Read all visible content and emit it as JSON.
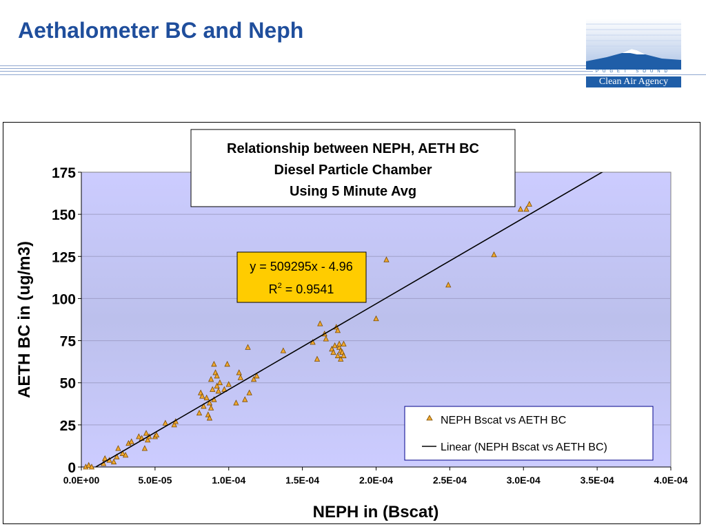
{
  "slide": {
    "title": "Aethalometer BC and Neph"
  },
  "logo": {
    "icon": "mountain-logo-icon",
    "top_text": "PUGET SOUND",
    "name": "Clean Air Agency",
    "colors": {
      "blue": "#1f5ea8",
      "sky": "#aec4e6"
    }
  },
  "chart_data": {
    "type": "scatter",
    "title": [
      "Relationship between NEPH, AETH BC",
      "Diesel Particle Chamber",
      "Using 5 Minute Avg"
    ],
    "xlabel": "NEPH in (Bscat)",
    "ylabel": "AETH BC in (ug/m3)",
    "xlim": [
      0,
      0.0004
    ],
    "ylim": [
      0,
      175
    ],
    "xticks": [
      "0.0E+00",
      "5.0E-05",
      "1.0E-04",
      "1.5E-04",
      "2.0E-04",
      "2.5E-04",
      "3.0E-04",
      "3.5E-04",
      "4.0E-04"
    ],
    "yticks": [
      "0",
      "25",
      "50",
      "75",
      "100",
      "125",
      "150",
      "175"
    ],
    "grid": "horizontal",
    "legend_position": "bottom-right",
    "colors": {
      "plot_area_top": "#ccccff",
      "plot_area_bottom": "#bcc0ec",
      "marker_fill": "#f0a830",
      "marker_edge": "#7a4b00",
      "line": "#000000",
      "equation_box": "#ffcc00"
    },
    "trendline": {
      "slope": 509295,
      "intercept": -4.96
    },
    "annotation": {
      "equation": "y = 509295x - 4.96",
      "r2_prefix": "R",
      "r2_exp": "2",
      "r2_value": " = 0.9541"
    },
    "series": [
      {
        "name": "NEPH Bscat vs AETH BC",
        "marker": "triangle",
        "points": [
          [
            3e-06,
            0
          ],
          [
            5e-06,
            1
          ],
          [
            7e-06,
            0
          ],
          [
            1.5e-05,
            2
          ],
          [
            1.6e-05,
            5
          ],
          [
            1.9e-05,
            4
          ],
          [
            2.2e-05,
            3
          ],
          [
            2.4e-05,
            6
          ],
          [
            2.5e-05,
            11
          ],
          [
            2.8e-05,
            8
          ],
          [
            3e-05,
            7
          ],
          [
            3.2e-05,
            14
          ],
          [
            3.4e-05,
            15
          ],
          [
            3.9e-05,
            18
          ],
          [
            4.1e-05,
            17
          ],
          [
            4.3e-05,
            11
          ],
          [
            4.4e-05,
            20
          ],
          [
            4.5e-05,
            16
          ],
          [
            4.6e-05,
            18
          ],
          [
            5e-05,
            18
          ],
          [
            5.1e-05,
            19
          ],
          [
            5.7e-05,
            26
          ],
          [
            6.3e-05,
            25
          ],
          [
            6.4e-05,
            27
          ],
          [
            8e-05,
            32
          ],
          [
            8.1e-05,
            44
          ],
          [
            8.2e-05,
            42
          ],
          [
            8.3e-05,
            36
          ],
          [
            8.5e-05,
            41
          ],
          [
            8.6e-05,
            31
          ],
          [
            8.7e-05,
            38
          ],
          [
            8.7e-05,
            29
          ],
          [
            8.8e-05,
            35
          ],
          [
            8.8e-05,
            52
          ],
          [
            8.9e-05,
            46
          ],
          [
            9e-05,
            61
          ],
          [
            9e-05,
            40
          ],
          [
            9.1e-05,
            56
          ],
          [
            9.2e-05,
            54
          ],
          [
            9.2e-05,
            48
          ],
          [
            9.3e-05,
            45
          ],
          [
            9.4e-05,
            50
          ],
          [
            9.7e-05,
            46
          ],
          [
            9.9e-05,
            61
          ],
          [
            0.0001,
            49
          ],
          [
            0.000105,
            38
          ],
          [
            0.000107,
            56
          ],
          [
            0.000108,
            53
          ],
          [
            0.000111,
            40
          ],
          [
            0.000113,
            71
          ],
          [
            0.000114,
            44
          ],
          [
            0.000117,
            52
          ],
          [
            0.000119,
            54
          ],
          [
            0.000137,
            69
          ],
          [
            0.000157,
            74
          ],
          [
            0.00016,
            64
          ],
          [
            0.000162,
            85
          ],
          [
            0.000165,
            79
          ],
          [
            0.000166,
            76
          ],
          [
            0.00017,
            70
          ],
          [
            0.000171,
            68
          ],
          [
            0.000172,
            72
          ],
          [
            0.000173,
            83
          ],
          [
            0.000174,
            81
          ],
          [
            0.000174,
            66
          ],
          [
            0.000175,
            71
          ],
          [
            0.000175,
            73
          ],
          [
            0.000176,
            69
          ],
          [
            0.000176,
            64
          ],
          [
            0.000177,
            68
          ],
          [
            0.000178,
            73
          ],
          [
            0.000178,
            66
          ],
          [
            0.0002,
            88
          ],
          [
            0.000207,
            123
          ],
          [
            0.000249,
            108
          ],
          [
            0.00028,
            126
          ],
          [
            0.000298,
            153
          ],
          [
            0.000302,
            153
          ],
          [
            0.000304,
            156
          ]
        ]
      },
      {
        "name": "Linear (NEPH Bscat vs AETH BC)",
        "type": "line"
      }
    ]
  }
}
